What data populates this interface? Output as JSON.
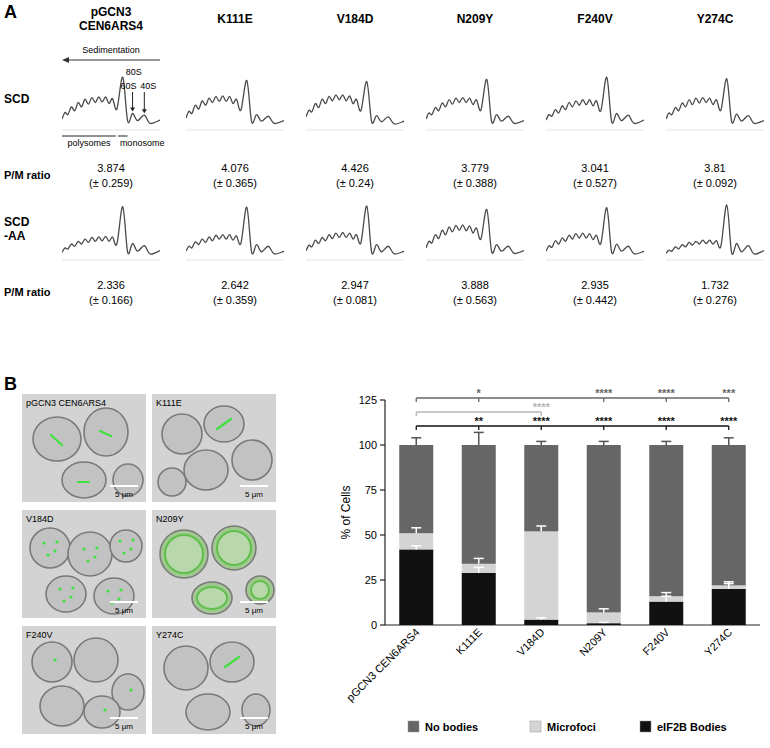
{
  "chart_data": [
    {
      "type": "line",
      "panel_label": "A",
      "tick_labels": false,
      "x": [
        0,
        3,
        6,
        9.5,
        13,
        16.5,
        20,
        23.5,
        27,
        30.5,
        34,
        37.5,
        41,
        44.5,
        48,
        51.5,
        56,
        62,
        67,
        72,
        77,
        84,
        90,
        100
      ],
      "xlim": [
        0,
        100
      ],
      "ylim": [
        0,
        100
      ],
      "strains": [
        "pGCN3 CEN6ARS4",
        "K111E",
        "V184D",
        "N209Y",
        "F240V",
        "Y274C"
      ],
      "sedimentation_label": "Sedimentation",
      "peak_labels": [
        "80S",
        "60S",
        "40S"
      ],
      "region_labels": [
        "polysomes",
        "monosome"
      ],
      "ratio_label": "P/M ratio",
      "conditions": [
        {
          "name": "SCD",
          "series": [
            {
              "values": [
                20,
                32,
                28,
                42,
                35,
                50,
                42,
                56,
                47,
                59,
                50,
                60,
                51,
                60,
                48,
                57,
                38,
                96,
                16,
                30,
                17,
                27,
                12,
                18
              ],
              "ratio": 3.874,
              "ratio_error": {
                "value": 0.259,
                "label": "(± 0.259)"
              }
            },
            {
              "values": [
                22,
                34,
                30,
                45,
                38,
                53,
                45,
                58,
                50,
                61,
                52,
                62,
                52,
                61,
                48,
                56,
                36,
                90,
                15,
                28,
                16,
                25,
                12,
                17
              ],
              "ratio": 4.076,
              "ratio_error": {
                "value": 0.365,
                "label": "(± 0.365)"
              }
            },
            {
              "values": [
                24,
                36,
                33,
                48,
                41,
                56,
                48,
                61,
                53,
                64,
                55,
                64,
                53,
                62,
                48,
                56,
                35,
                88,
                15,
                26,
                15,
                24,
                11,
                16
              ],
              "ratio": 4.426,
              "ratio_error": {
                "value": 0.24,
                "label": "(± 0.24)"
              }
            },
            {
              "values": [
                20,
                31,
                28,
                41,
                35,
                49,
                42,
                55,
                47,
                58,
                50,
                59,
                50,
                58,
                46,
                55,
                36,
                92,
                15,
                28,
                16,
                25,
                12,
                17
              ],
              "ratio": 3.779,
              "ratio_error": {
                "value": 0.388,
                "label": "(± 0.388)"
              }
            },
            {
              "values": [
                18,
                28,
                25,
                37,
                31,
                44,
                37,
                50,
                42,
                53,
                45,
                55,
                46,
                55,
                44,
                53,
                35,
                96,
                15,
                30,
                17,
                27,
                12,
                18
              ],
              "ratio": 3.041,
              "ratio_error": {
                "value": 0.527,
                "label": "(± 0.527)"
              }
            },
            {
              "values": [
                20,
                31,
                28,
                41,
                35,
                49,
                42,
                55,
                46,
                58,
                49,
                59,
                50,
                58,
                46,
                55,
                36,
                93,
                15,
                29,
                16,
                26,
                12,
                17
              ],
              "ratio": 3.81,
              "ratio_error": {
                "value": 0.092,
                "label": "(± 0.092)"
              }
            }
          ]
        },
        {
          "name": "SCD -AA",
          "series": [
            {
              "values": [
                14,
                22,
                20,
                29,
                25,
                34,
                29,
                38,
                32,
                41,
                34,
                42,
                35,
                43,
                34,
                42,
                29,
                97,
                14,
                30,
                16,
                26,
                11,
                17
              ],
              "ratio": 2.336,
              "ratio_error": {
                "value": 0.166,
                "label": "(± 0.166)"
              }
            },
            {
              "values": [
                16,
                25,
                22,
                33,
                28,
                38,
                32,
                42,
                35,
                45,
                38,
                46,
                38,
                46,
                36,
                44,
                30,
                96,
                14,
                28,
                15,
                25,
                11,
                16
              ],
              "ratio": 2.642,
              "ratio_error": {
                "value": 0.359,
                "label": "(± 0.359)"
              }
            },
            {
              "values": [
                17,
                27,
                24,
                36,
                30,
                41,
                35,
                46,
                39,
                49,
                41,
                50,
                41,
                49,
                38,
                46,
                31,
                98,
                14,
                28,
                15,
                25,
                11,
                16
              ],
              "ratio": 2.947,
              "ratio_error": {
                "value": 0.081,
                "label": "(± 0.081)"
              }
            },
            {
              "values": [
                22,
                34,
                31,
                46,
                39,
                54,
                46,
                60,
                51,
                63,
                54,
                64,
                53,
                62,
                49,
                58,
                38,
                92,
                15,
                28,
                16,
                25,
                12,
                17
              ],
              "ratio": 3.888,
              "ratio_error": {
                "value": 0.563,
                "label": "(± 0.563)"
              }
            },
            {
              "values": [
                16,
                26,
                23,
                35,
                29,
                40,
                34,
                45,
                38,
                48,
                40,
                49,
                40,
                48,
                37,
                45,
                30,
                95,
                14,
                29,
                16,
                25,
                11,
                16
              ],
              "ratio": 2.935,
              "ratio_error": {
                "value": 0.442,
                "label": "(± 0.442)"
              }
            },
            {
              "values": [
                12,
                18,
                16,
                24,
                20,
                28,
                24,
                32,
                27,
                34,
                29,
                36,
                30,
                36,
                29,
                35,
                25,
                100,
                13,
                30,
                15,
                26,
                11,
                17
              ],
              "ratio": 1.732,
              "ratio_error": {
                "value": 0.276,
                "label": "(± 0.276)"
              }
            }
          ]
        }
      ]
    },
    {
      "type": "bar",
      "panel_label": "B",
      "stacked": true,
      "legend": "bottom",
      "categories": [
        "pGCN3 CEN6ARS4",
        "K111E",
        "V184D",
        "N209Y",
        "F240V",
        "Y274C"
      ],
      "ylabel": "% of Cells",
      "ylim": [
        0,
        125
      ],
      "yticks": [
        0,
        25,
        50,
        75,
        100,
        125
      ],
      "series": [
        {
          "name": "eIF2B Bodies",
          "color": "#111111",
          "values": [
            42,
            29,
            3,
            1,
            13,
            20
          ],
          "errors": [
            2,
            3,
            1,
            0.5,
            3,
            3
          ]
        },
        {
          "name": "Microfoci",
          "color": "#d4d4d4",
          "values": [
            9,
            5,
            49,
            6,
            3,
            2
          ],
          "errors": [
            3,
            3,
            3,
            2,
            2,
            2
          ]
        },
        {
          "name": "No bodies",
          "color": "#666666",
          "values": [
            49,
            66,
            48,
            93,
            84,
            78
          ],
          "errors": [
            4,
            7,
            2,
            2,
            2,
            4
          ]
        }
      ],
      "significance": [
        {
          "color": "#666666",
          "marks": [
            {
              "category": 1,
              "label": "*"
            },
            {
              "category": 3,
              "label": "****"
            },
            {
              "category": 4,
              "label": "****"
            },
            {
              "category": 5,
              "label": "***"
            }
          ]
        },
        {
          "color": "#b5b5b5",
          "marks": [
            {
              "category": 2,
              "label": "****"
            }
          ]
        },
        {
          "color": "#111111",
          "marks": [
            {
              "category": 1,
              "label": "**"
            },
            {
              "category": 2,
              "label": "****"
            },
            {
              "category": 3,
              "label": "****"
            },
            {
              "category": 4,
              "label": "****"
            },
            {
              "category": 5,
              "label": "****"
            }
          ]
        }
      ]
    }
  ],
  "images": {
    "labels": [
      "pGCN3 CEN6ARS4",
      "K111E",
      "V184D",
      "N209Y",
      "F240V",
      "Y274C"
    ],
    "scale_label": "5 μm"
  }
}
